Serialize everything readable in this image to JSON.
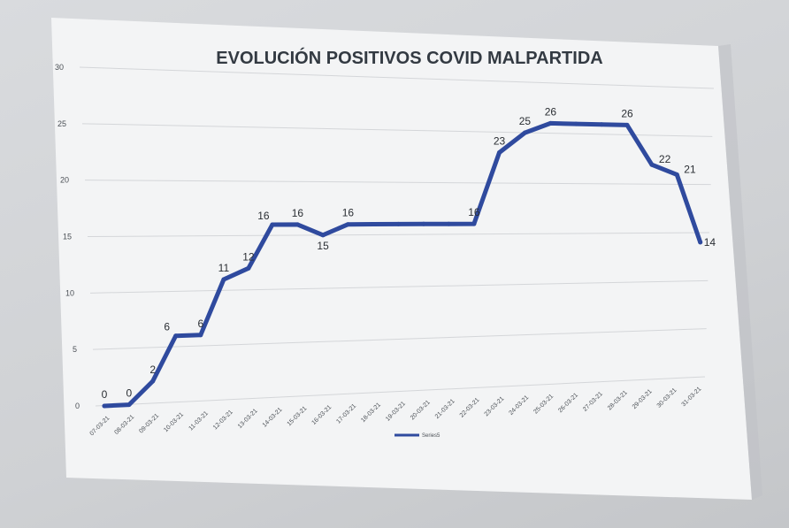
{
  "chart_data": {
    "type": "line",
    "title": "EVOLUCIÓN POSITIVOS COVID MALPARTIDA",
    "xlabel": "",
    "ylabel": "",
    "ylim": [
      0,
      30
    ],
    "yticks": [
      "0",
      "5",
      "10",
      "15",
      "20",
      "25",
      "30"
    ],
    "categories": [
      "07-03-21",
      "08-03-21",
      "09-03-21",
      "10-03-21",
      "11-03-21",
      "12-03-21",
      "13-03-21",
      "14-03-21",
      "15-03-21",
      "16-03-21",
      "17-03-21",
      "18-03-21",
      "19-03-21",
      "20-03-21",
      "21-03-21",
      "22-03-21",
      "23-03-21",
      "24-03-21",
      "25-03-21",
      "26-03-21",
      "27-03-21",
      "28-03-21",
      "29-03-21",
      "30-03-21",
      "31-03-21"
    ],
    "series": [
      {
        "name": "Series5",
        "values": [
          0,
          0,
          2,
          6,
          6,
          11,
          12,
          16,
          16,
          15,
          16,
          16,
          16,
          16,
          16,
          16,
          23,
          25,
          26,
          26,
          26,
          26,
          22,
          21,
          14
        ]
      }
    ],
    "data_labels": [
      {
        "index": 0,
        "text": "0"
      },
      {
        "index": 1,
        "text": "0"
      },
      {
        "index": 2,
        "text": "2"
      },
      {
        "index": 3,
        "text": "6"
      },
      {
        "index": 4,
        "text": "6"
      },
      {
        "index": 5,
        "text": "11"
      },
      {
        "index": 6,
        "text": "12"
      },
      {
        "index": 7,
        "text": "16"
      },
      {
        "index": 8,
        "text": "16"
      },
      {
        "index": 9,
        "text": "15"
      },
      {
        "index": 10,
        "text": "16"
      },
      {
        "index": 15,
        "text": "16"
      },
      {
        "index": 16,
        "text": "23"
      },
      {
        "index": 17,
        "text": "25"
      },
      {
        "index": 18,
        "text": "26"
      },
      {
        "index": 21,
        "text": "26"
      },
      {
        "index": 22,
        "text": "22"
      },
      {
        "index": 23,
        "text": "21"
      },
      {
        "index": 24,
        "text": "14"
      }
    ],
    "grid": true,
    "legend": "bottom",
    "colors": {
      "line": "#2f4a9e",
      "grid": "#d4d6d9",
      "paper": "#f3f4f5"
    }
  }
}
